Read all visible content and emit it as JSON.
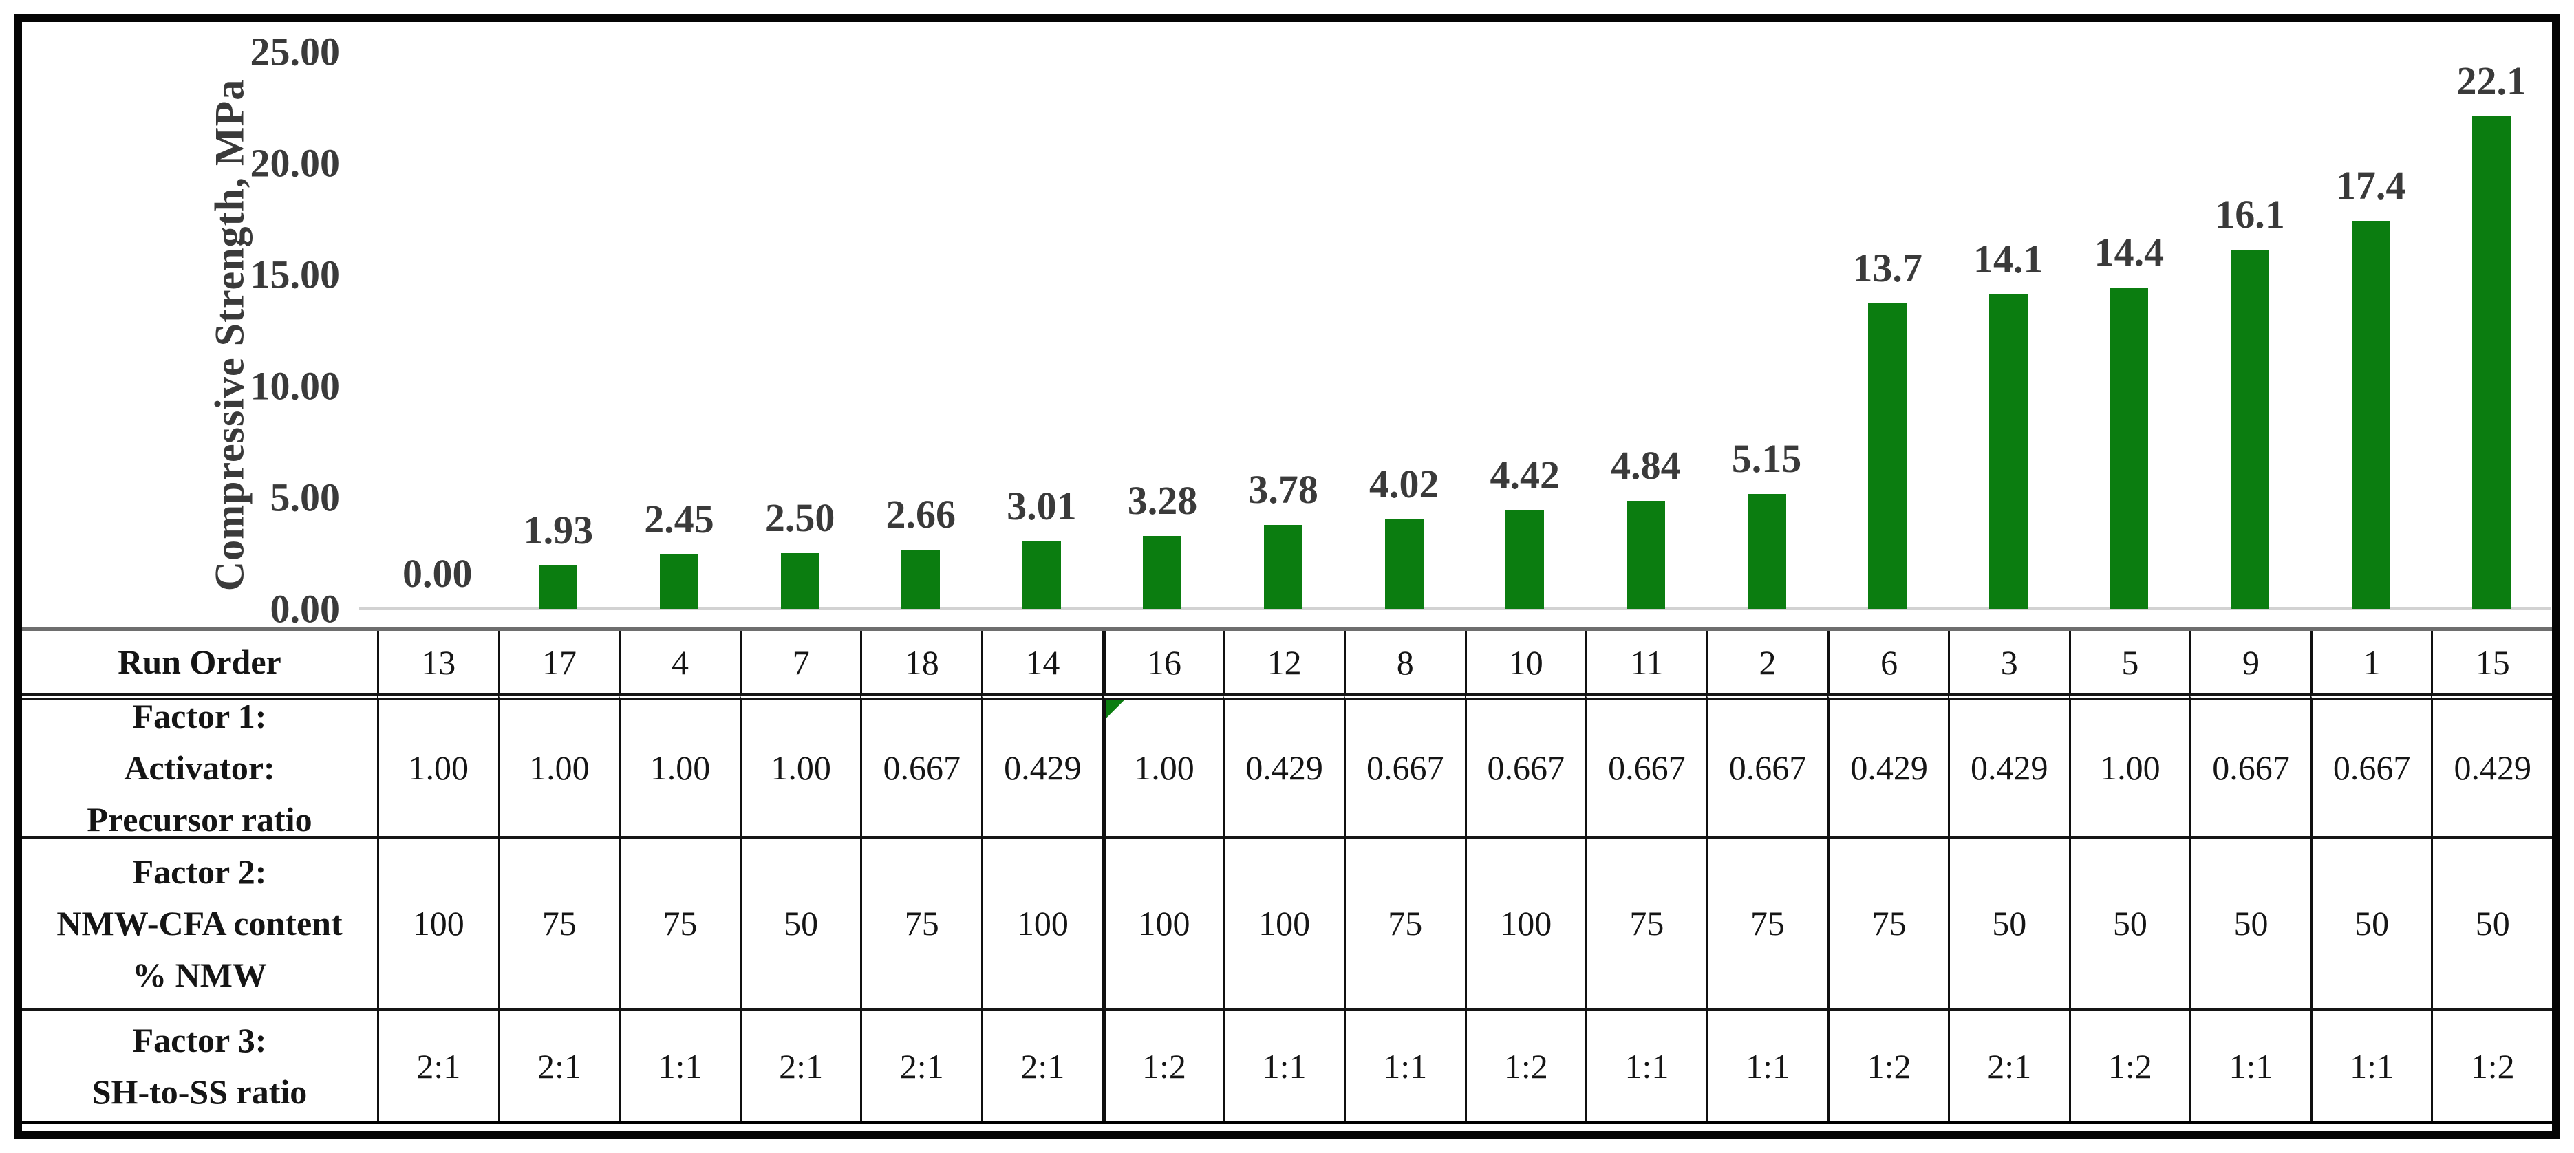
{
  "chart_data": {
    "type": "bar",
    "title": "",
    "ylabel": "Compressive Strength, MPa",
    "ylim": [
      0,
      25
    ],
    "grid": false,
    "legend": "none",
    "bar_color": "#0b7d10",
    "text_color": "#3a3a3a",
    "axis_line_color": "#d2d2d2",
    "yticks": [
      {
        "value": 0,
        "label": "0.00"
      },
      {
        "value": 5,
        "label": "5.00"
      },
      {
        "value": 10,
        "label": "10.00"
      },
      {
        "value": 15,
        "label": "15.00"
      },
      {
        "value": 20,
        "label": "20.00"
      },
      {
        "value": 25,
        "label": "25.00"
      }
    ],
    "categories": [
      "13",
      "17",
      "4",
      "7",
      "18",
      "14",
      "16",
      "12",
      "8",
      "10",
      "11",
      "2",
      "6",
      "3",
      "5",
      "9",
      "1",
      "15"
    ],
    "values": [
      0.0,
      1.93,
      2.45,
      2.5,
      2.66,
      3.01,
      3.28,
      3.78,
      4.02,
      4.42,
      4.84,
      5.15,
      13.7,
      14.1,
      14.4,
      16.1,
      17.4,
      22.1
    ],
    "value_labels": [
      "0.00",
      "1.93",
      "2.45",
      "2.50",
      "2.66",
      "3.01",
      "3.28",
      "3.78",
      "4.02",
      "4.42",
      "4.84",
      "5.15",
      "13.7",
      "14.1",
      "14.4",
      "16.1",
      "17.4",
      "22.1"
    ]
  },
  "table": {
    "row_headers": [
      {
        "lines": [
          "Run Order"
        ]
      },
      {
        "lines": [
          "Factor 1:",
          "Activator:",
          "Precursor ratio"
        ]
      },
      {
        "lines": [
          "Factor 2:",
          "NMW-CFA content",
          "% NMW"
        ]
      },
      {
        "lines": [
          "Factor 3:",
          "SH-to-SS ratio"
        ]
      }
    ],
    "rows": [
      [
        "13",
        "17",
        "4",
        "7",
        "18",
        "14",
        "16",
        "12",
        "8",
        "10",
        "11",
        "2",
        "6",
        "3",
        "5",
        "9",
        "1",
        "15"
      ],
      [
        "1.00",
        "1.00",
        "1.00",
        "1.00",
        "0.667",
        "0.429",
        "1.00",
        "0.429",
        "0.667",
        "0.667",
        "0.667",
        "0.667",
        "0.429",
        "0.429",
        "1.00",
        "0.667",
        "0.667",
        "0.429"
      ],
      [
        "100",
        "75",
        "75",
        "50",
        "75",
        "100",
        "100",
        "100",
        "75",
        "100",
        "75",
        "75",
        "75",
        "50",
        "50",
        "50",
        "50",
        "50"
      ],
      [
        "2:1",
        "2:1",
        "1:1",
        "2:1",
        "2:1",
        "2:1",
        "1:2",
        "1:1",
        "1:1",
        "1:2",
        "1:1",
        "1:1",
        "1:2",
        "2:1",
        "1:2",
        "1:1",
        "1:1",
        "1:2"
      ]
    ],
    "group_boundaries_before_col": [
      6,
      12
    ],
    "error_flag": {
      "row_index": 1,
      "col_index": 6,
      "color": "#0b7d10",
      "kind": "excel-corner-triangle"
    }
  }
}
